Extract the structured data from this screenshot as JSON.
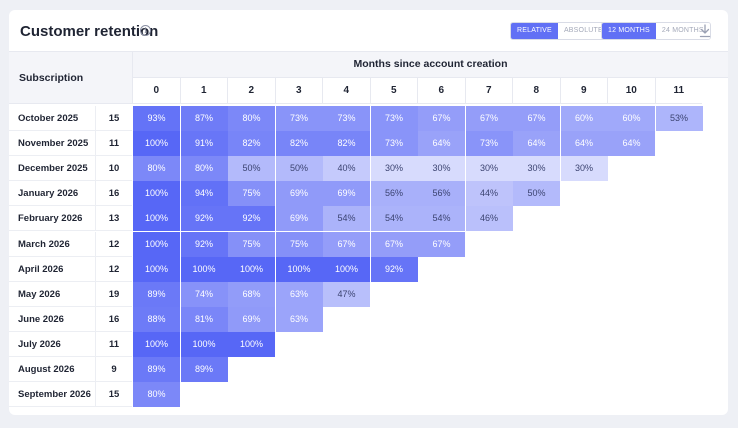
{
  "header": {
    "title": "Customer retention",
    "info_icon": "info-icon",
    "mode_toggle": [
      {
        "label": "RELATIVE",
        "active": true
      },
      {
        "label": "ABSOLUTE",
        "active": false
      }
    ],
    "range_toggle": [
      {
        "label": "12 MONTHS",
        "active": true
      },
      {
        "label": "24 MONTHS",
        "active": false
      }
    ],
    "download_icon": "download-icon"
  },
  "table": {
    "subscription_header": "Subscription",
    "months_header": "Months since account creation",
    "months": [
      "0",
      "1",
      "2",
      "3",
      "4",
      "5",
      "6",
      "7",
      "8",
      "9",
      "10",
      "11"
    ],
    "rows": [
      {
        "label": "October 2025",
        "count": "15",
        "values": [
          "93%",
          "87%",
          "80%",
          "73%",
          "73%",
          "73%",
          "67%",
          "67%",
          "67%",
          "60%",
          "60%",
          "53%"
        ]
      },
      {
        "label": "November 2025",
        "count": "11",
        "values": [
          "100%",
          "91%",
          "82%",
          "82%",
          "82%",
          "73%",
          "64%",
          "73%",
          "64%",
          "64%",
          "64%"
        ]
      },
      {
        "label": "December 2025",
        "count": "10",
        "values": [
          "80%",
          "80%",
          "50%",
          "50%",
          "40%",
          "30%",
          "30%",
          "30%",
          "30%",
          "30%"
        ]
      },
      {
        "label": "January 2026",
        "count": "16",
        "values": [
          "100%",
          "94%",
          "75%",
          "69%",
          "69%",
          "56%",
          "56%",
          "44%",
          "50%"
        ]
      },
      {
        "label": "February 2026",
        "count": "13",
        "values": [
          "100%",
          "92%",
          "92%",
          "69%",
          "54%",
          "54%",
          "54%",
          "46%"
        ]
      },
      {
        "label": "March 2026",
        "count": "12",
        "values": [
          "100%",
          "92%",
          "75%",
          "75%",
          "67%",
          "67%",
          "67%"
        ]
      },
      {
        "label": "April 2026",
        "count": "12",
        "values": [
          "100%",
          "100%",
          "100%",
          "100%",
          "100%",
          "92%"
        ]
      },
      {
        "label": "May 2026",
        "count": "19",
        "values": [
          "89%",
          "74%",
          "68%",
          "63%",
          "47%"
        ]
      },
      {
        "label": "June 2026",
        "count": "16",
        "values": [
          "88%",
          "81%",
          "69%",
          "63%"
        ]
      },
      {
        "label": "July 2026",
        "count": "11",
        "values": [
          "100%",
          "100%",
          "100%"
        ]
      },
      {
        "label": "August 2026",
        "count": "9",
        "values": [
          "89%",
          "89%"
        ]
      },
      {
        "label": "September 2026",
        "count": "15",
        "values": [
          "80%"
        ]
      }
    ]
  },
  "colors": {
    "accent": "#6170f5",
    "cell_full": "#5767f6",
    "cell_empty": "#eeeffe"
  }
}
